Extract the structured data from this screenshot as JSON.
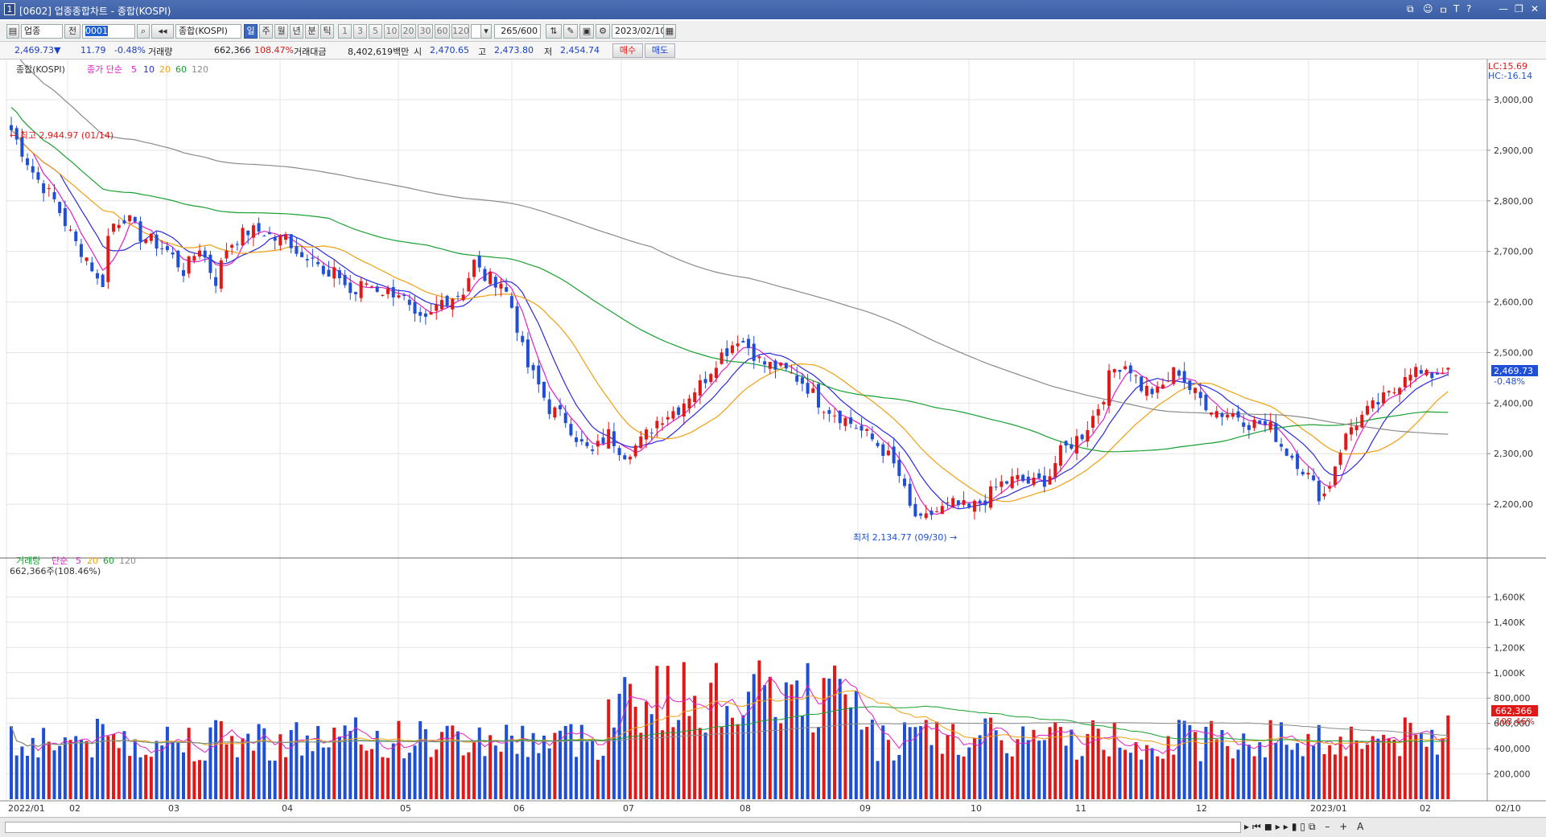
{
  "window": {
    "title_num": "1",
    "title": "[0602] 업종종합차트 - 종합(KOSPI)",
    "controls": [
      "⧉",
      "☺",
      "ㅁ",
      "T",
      "?",
      "—",
      "❐",
      "✕"
    ]
  },
  "toolbar": {
    "category": "업종",
    "kind": "전",
    "code": "0001",
    "name": "종합(KOSPI)",
    "periods": [
      "일",
      "주",
      "월",
      "년",
      "분",
      "틱"
    ],
    "minutes": [
      "1",
      "3",
      "5",
      "10",
      "20",
      "30",
      "60",
      "120"
    ],
    "count": "265/600",
    "date": "2023/02/10"
  },
  "info": {
    "price": "2,469.73▼",
    "change": "11.79",
    "change_pct": "-0.48%",
    "volume_label": "거래량",
    "volume": "662,366",
    "volume_pct": "108.47%",
    "amount_label": "거래대금",
    "amount": "8,402,619백만",
    "open_label": "시",
    "open": "2,470.65",
    "high_label": "고",
    "high": "2,473.80",
    "low_label": "저",
    "low": "2,454.74",
    "buy": "매수",
    "sell": "매도"
  },
  "price_panel": {
    "name": "종합(KOSPI)",
    "legend_prefix": "종가 단순",
    "ma_labels": [
      "5",
      "10",
      "20",
      "60",
      "120"
    ],
    "lc": "LC:15.69",
    "hc": "HC:-16.14",
    "high_note": "← 최고 2,944.97 (01/14)",
    "low_note": "최저 2,134.77 (09/30) →",
    "last": "2,469.73",
    "last_pct": "-0.48%"
  },
  "volume_panel": {
    "name": "거래량",
    "legend_prefix": "단순",
    "ma_labels": [
      "5",
      "20",
      "60",
      "120"
    ],
    "summary": "662,366주(108.46%)",
    "last": "662,366",
    "last_pct": "108.46%"
  },
  "colors": {
    "up": "#e01818",
    "down": "#1f4fd6",
    "ma5": "#e020c8",
    "ma10": "#2a2ae0",
    "ma20": "#f0a010",
    "ma60": "#18a030",
    "ma120": "#8a8a8a",
    "axis_tag": "#1f4fd6",
    "vol_tag": "#e01818"
  },
  "chart_data": {
    "type": "candlestick",
    "price_axis": {
      "ticks": [
        3000,
        2900,
        2800,
        2700,
        2600,
        2500,
        2400,
        2300,
        2200
      ],
      "range": [
        2100,
        3070
      ]
    },
    "volume_axis": {
      "ticks": [
        200000,
        400000,
        600000,
        800000,
        1000000,
        1200000,
        1400000,
        1600000
      ],
      "labels": [
        "200,000",
        "400,000",
        "600,000",
        "800,000",
        "1,000K",
        "1,200K",
        "1,400K",
        "1,600K"
      ],
      "range": [
        0,
        1730000
      ]
    },
    "months": [
      "2022/01",
      "02",
      "03",
      "04",
      "05",
      "06",
      "07",
      "08",
      "09",
      "10",
      "11",
      "12",
      "2023/01",
      "02"
    ],
    "last_date": "02/10",
    "series_close": [
      [
        0,
        2940
      ],
      [
        12,
        2850
      ],
      [
        22,
        2800
      ],
      [
        32,
        2720
      ],
      [
        40,
        2680
      ],
      [
        46,
        2620
      ],
      [
        50,
        2750
      ],
      [
        58,
        2770
      ],
      [
        66,
        2730
      ],
      [
        72,
        2720
      ],
      [
        80,
        2700
      ],
      [
        88,
        2660
      ],
      [
        96,
        2710
      ],
      [
        104,
        2640
      ],
      [
        110,
        2710
      ],
      [
        120,
        2740
      ],
      [
        128,
        2740
      ],
      [
        136,
        2720
      ],
      [
        140,
        2730
      ],
      [
        148,
        2690
      ],
      [
        154,
        2700
      ],
      [
        160,
        2640
      ],
      [
        166,
        2660
      ],
      [
        174,
        2610
      ],
      [
        180,
        2640
      ],
      [
        190,
        2620
      ],
      [
        198,
        2620
      ],
      [
        206,
        2560
      ],
      [
        212,
        2560
      ],
      [
        218,
        2600
      ],
      [
        224,
        2610
      ],
      [
        230,
        2620
      ],
      [
        236,
        2680
      ],
      [
        240,
        2650
      ],
      [
        250,
        2640
      ],
      [
        256,
        2580
      ],
      [
        262,
        2480
      ],
      [
        268,
        2440
      ],
      [
        274,
        2390
      ],
      [
        282,
        2370
      ],
      [
        290,
        2320
      ],
      [
        296,
        2300
      ],
      [
        304,
        2340
      ],
      [
        312,
        2300
      ],
      [
        320,
        2320
      ],
      [
        330,
        2370
      ],
      [
        340,
        2390
      ],
      [
        346,
        2420
      ],
      [
        352,
        2440
      ],
      [
        360,
        2490
      ],
      [
        366,
        2510
      ],
      [
        370,
        2530
      ],
      [
        376,
        2510
      ],
      [
        382,
        2480
      ],
      [
        390,
        2470
      ],
      [
        396,
        2460
      ],
      [
        404,
        2440
      ],
      [
        412,
        2400
      ],
      [
        420,
        2380
      ],
      [
        428,
        2360
      ],
      [
        438,
        2330
      ],
      [
        446,
        2300
      ],
      [
        452,
        2260
      ],
      [
        458,
        2190
      ],
      [
        464,
        2160
      ],
      [
        468,
        2180
      ],
      [
        474,
        2190
      ],
      [
        480,
        2200
      ],
      [
        488,
        2190
      ],
      [
        496,
        2210
      ],
      [
        504,
        2240
      ],
      [
        512,
        2250
      ],
      [
        520,
        2240
      ],
      [
        528,
        2250
      ],
      [
        534,
        2300
      ],
      [
        540,
        2320
      ],
      [
        546,
        2340
      ],
      [
        552,
        2380
      ],
      [
        556,
        2410
      ],
      [
        560,
        2460
      ],
      [
        566,
        2480
      ],
      [
        570,
        2470
      ],
      [
        576,
        2430
      ],
      [
        584,
        2420
      ],
      [
        590,
        2450
      ],
      [
        594,
        2470
      ],
      [
        600,
        2430
      ],
      [
        608,
        2400
      ],
      [
        616,
        2380
      ],
      [
        624,
        2380
      ],
      [
        630,
        2360
      ],
      [
        636,
        2360
      ],
      [
        642,
        2350
      ],
      [
        648,
        2310
      ],
      [
        654,
        2290
      ],
      [
        660,
        2260
      ],
      [
        666,
        2220
      ],
      [
        670,
        2220
      ],
      [
        676,
        2300
      ],
      [
        682,
        2350
      ],
      [
        690,
        2380
      ],
      [
        696,
        2400
      ],
      [
        704,
        2420
      ],
      [
        710,
        2460
      ],
      [
        714,
        2470
      ],
      [
        720,
        2450
      ],
      [
        726,
        2460
      ],
      [
        732,
        2470
      ]
    ]
  }
}
